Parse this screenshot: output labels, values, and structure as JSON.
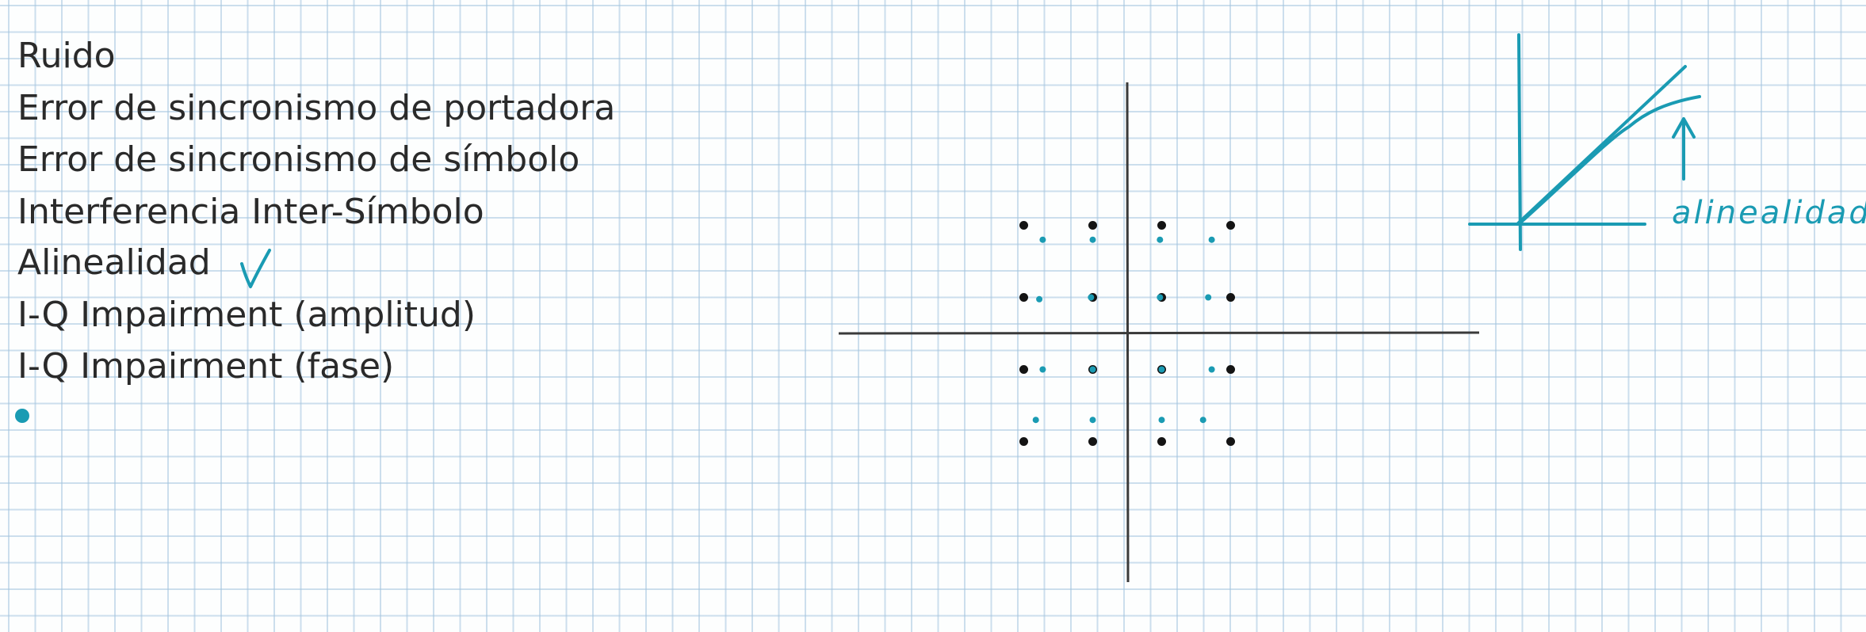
{
  "list": {
    "items": [
      "Ruido",
      "Error de sincronismo de portadora",
      "Error de sincronismo de símbolo",
      "Interferencia Inter-Símbolo",
      "Alinealidad",
      "I-Q Impairment (amplitud)",
      "I-Q Impairment (fase)"
    ]
  },
  "annotation": {
    "text": "alinealidad"
  },
  "colors": {
    "text": "#2a2a2a",
    "axes": "#3a3a3a",
    "ideal_points": "#141414",
    "distorted_points": "#1a9bb3",
    "ink": "#1a9bb3"
  },
  "constellation": {
    "levels": [
      -3,
      -1,
      1,
      3
    ],
    "ideal_points": [
      [
        -3,
        3
      ],
      [
        -1,
        3
      ],
      [
        1,
        3
      ],
      [
        3,
        3
      ],
      [
        -3,
        1
      ],
      [
        -1,
        1
      ],
      [
        1,
        1
      ],
      [
        3,
        1
      ],
      [
        -3,
        -1
      ],
      [
        -1,
        -1
      ],
      [
        1,
        -1
      ],
      [
        3,
        -1
      ],
      [
        -3,
        -3
      ],
      [
        -1,
        -3
      ],
      [
        1,
        -3
      ],
      [
        3,
        -3
      ]
    ],
    "distorted_points": [
      [
        -2.45,
        2.6
      ],
      [
        -1,
        2.6
      ],
      [
        0.95,
        2.6
      ],
      [
        2.45,
        2.6
      ],
      [
        -2.55,
        0.95
      ],
      [
        -1.05,
        1
      ],
      [
        0.95,
        1
      ],
      [
        2.35,
        1
      ],
      [
        -2.45,
        -1
      ],
      [
        -1,
        -1
      ],
      [
        1,
        -1
      ],
      [
        2.45,
        -1
      ],
      [
        -2.65,
        -2.4
      ],
      [
        -1,
        -2.4
      ],
      [
        1,
        -2.4
      ],
      [
        2.2,
        -2.4
      ]
    ]
  }
}
